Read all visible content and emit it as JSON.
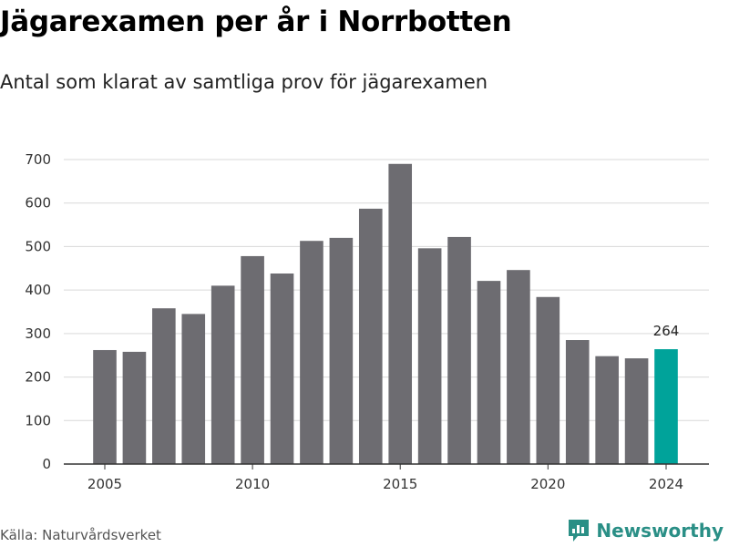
{
  "title": "Jägarexamen per år i Norrbotten",
  "subtitle": "Antal som klarat av samtliga prov för jägarexamen",
  "source": "Källa: Naturvårdsverket",
  "brand": "Newsworthy",
  "colors": {
    "bar": "#6d6c71",
    "highlight": "#00a39a",
    "grid": "#d9d9d9",
    "axis": "#333333",
    "brand": "#2a8f86"
  },
  "chart_data": {
    "type": "bar",
    "x": [
      2005,
      2006,
      2007,
      2008,
      2009,
      2010,
      2011,
      2012,
      2013,
      2014,
      2015,
      2016,
      2017,
      2018,
      2019,
      2020,
      2021,
      2022,
      2023,
      2024
    ],
    "values": [
      262,
      258,
      358,
      345,
      410,
      478,
      438,
      513,
      520,
      587,
      690,
      496,
      522,
      421,
      446,
      384,
      285,
      248,
      243,
      264
    ],
    "highlight_index": 19,
    "annotation": "264",
    "xticks": [
      2005,
      2010,
      2015,
      2020,
      2024
    ],
    "yticks": [
      0,
      100,
      200,
      300,
      400,
      500,
      600,
      700
    ],
    "ylim": [
      0,
      700
    ],
    "grid": true
  }
}
